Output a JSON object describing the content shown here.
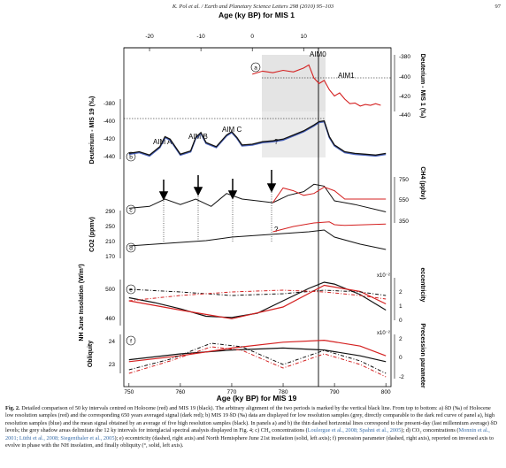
{
  "header": {
    "citation": "K. Pol et al. / Earth and Planetary Science Letters 298 (2010) 95–103",
    "page_number": "97"
  },
  "figure": {
    "top_axis_title": "Age (ky BP) for MIS 1",
    "bottom_axis_title": "Age (ky BP) for MIS 19",
    "top_ticks": [
      "-20",
      "-10",
      "0",
      "10"
    ],
    "bottom_ticks": [
      "750",
      "760",
      "770",
      "780",
      "790",
      "800"
    ],
    "panel_labels": [
      "a",
      "b",
      "c",
      "d",
      "e",
      "f"
    ],
    "panel_a_ticks": [
      "-380",
      "-400",
      "-420",
      "-440"
    ],
    "panel_a_axis": "Deuterium - MIS 1 (‰)",
    "panel_b_ticks": [
      "-380",
      "-400",
      "-420",
      "-440"
    ],
    "panel_b_axis": "Deuterium - MIS 19 (‰)",
    "ch4_ticks": [
      "750",
      "550",
      "350"
    ],
    "ch4_axis": "CH4 (ppbv)",
    "co2_ticks": [
      "290",
      "250",
      "210",
      "170"
    ],
    "co2_axis": "CO2 (ppmv)",
    "insolation_ticks": [
      "500",
      "460"
    ],
    "insolation_axis": "NH June Insolation (W/m²)",
    "ecc_ticks": [
      "2",
      "1",
      "0"
    ],
    "ecc_axis": "eccentricity",
    "ecc_multiplier": "x10⁻²",
    "obliquity_ticks": [
      "24",
      "23"
    ],
    "obliquity_axis": "Obliquity",
    "precession_ticks": [
      "2",
      "0",
      "-2"
    ],
    "precession_axis": "Precession parameter",
    "precession_multiplier": "x10⁻²",
    "annotations": {
      "aim_a": "AIM A",
      "aim_b": "AIM B",
      "aim_c": "AIM C",
      "aim_0": "AIM0",
      "aim_1": "AIM1",
      "question_b": "?",
      "question_co2": "?"
    },
    "colors": {
      "holocene": "#d42020",
      "mis19": "#111111",
      "mis19_high_res": "#2040b0",
      "shading": "#d8d8d8"
    }
  },
  "caption": {
    "label": "Fig. 2.",
    "text": " Detailed comparison of 50 ky intervals centred on Holocene (red) and MIS 19 (black). The arbitrary alignment of the two periods is marked by the vertical black line. From top to bottom: a) δD (‰) of Holocene low resolution samples (red) and the corresponding 650 years averaged signal (dark red); b) MIS 19 δD (‰) data are displayed for low resolution samples (grey, directly comparable to the dark red curve of panel a), high resolution samples (blue) and the mean signal obtained by an average of five high resolution samples (black). In panels a) and b) the thin dashed horizontal lines correspond to the present-day (last millennium average) δD levels; the grey shadow areas delimitate the 12 ky intervals for interglacial spectral analysis displayed in Fig. 4; c) CH₄ concentrations (",
    "ref1": "Loulergue et al., 2008; Spahni et al., 2005",
    "text2": "); d) CO₂ concentrations (",
    "ref2": "Monnin et al., 2001; Lüthi et al., 2008; Siegenthaler et al., 2005",
    "text3": "); e) eccentricity (dashed, right axis) and North Hemisphere June 21st insolation (solid, left axis); f) precession parameter (dashed, right axis), reported on inversed axis to evolve in phase with the NH insolation, and finally obliquity (°, solid, left axis)."
  },
  "chart_data": {
    "type": "line",
    "x_label": "Age (ky BP) for MIS 19",
    "x_range": [
      749,
      801
    ],
    "top_x_label": "Age (ky BP) for MIS 1",
    "top_x_range": [
      -25,
      27
    ],
    "panels": [
      {
        "id": "a",
        "ylabel": "Deuterium - MIS 1 (‰)",
        "ylim": [
          -448,
          -375
        ],
        "series": [
          {
            "values_x": [
              0,
              2,
              4,
              6,
              8,
              10,
              11,
              12,
              13,
              14,
              15,
              16,
              17,
              18,
              19,
              20,
              21,
              22,
              23,
              24,
              25
            ],
            "values_y": [
              -400,
              -396,
              -398,
              -395,
              -397,
              -392,
              -388,
              -405,
              -412,
              -408,
              -420,
              -428,
              -424,
              -432,
              -438,
              -437,
              -441,
              -439,
              -440,
              -438,
              -440
            ]
          }
        ]
      },
      {
        "id": "b",
        "ylabel": "Deuterium - MIS 19 (‰)",
        "ylim": [
          -447,
          -375
        ],
        "series": [
          {
            "values_x": [
              750,
              752,
              754,
              756,
              757,
              758,
              760,
              762,
              763,
              764,
              765,
              767,
              769,
              770,
              771,
              772,
              774,
              776,
              778,
              780,
              782,
              784,
              786,
              787,
              788,
              789,
              790,
              792,
              794,
              796,
              798,
              800
            ],
            "values_y": [
              -440,
              -438,
              -442,
              -432,
              -420,
              -423,
              -441,
              -437,
              -421,
              -415,
              -427,
              -432,
              -418,
              -414,
              -421,
              -430,
              -429,
              -426,
              -425,
              -423,
              -418,
              -413,
              -406,
              -402,
              -401,
              -420,
              -430,
              -438,
              -440,
              -441,
              -442,
              -440
            ]
          }
        ]
      },
      {
        "id": "c",
        "ylabel": "CH4 (ppbv)",
        "ylim": [
          300,
          800
        ],
        "series": [
          {
            "values_x": [
              750,
              754,
              757,
              760,
              763,
              766,
              769,
              772,
              775,
              778,
              781,
              784,
              786,
              788,
              790,
              794,
              800
            ],
            "values_y": [
              460,
              480,
              560,
              500,
              560,
              480,
              620,
              560,
              540,
              520,
              600,
              640,
              720,
              700,
              540,
              500,
              420
            ]
          },
          {
            "values_x": [
              778,
              780,
              782,
              784,
              786,
              788,
              790,
              792,
              796,
              800
            ],
            "values_y": [
              520,
              680,
              650,
              600,
              620,
              690,
              650,
              560,
              560,
              560
            ]
          }
        ]
      },
      {
        "id": "d",
        "ylabel": "CO2 (ppmv)",
        "ylim": [
          165,
          300
        ],
        "series": [
          {
            "values_x": [
              750,
              755,
              760,
              765,
              770,
              775,
              780,
              785,
              788,
              790,
              795,
              800
            ],
            "values_y": [
              200,
              205,
              210,
              215,
              225,
              230,
              235,
              240,
              245,
              225,
              205,
              190
            ]
          },
          {
            "values_x": [
              778,
              782,
              786,
              789,
              790,
              792,
              796,
              800
            ],
            "values_y": [
              240,
              255,
              265,
              268,
              260,
              258,
              260,
              262
            ]
          }
        ]
      },
      {
        "id": "e",
        "ylabel": "NH June Insolation (W/m²)",
        "ylim": [
          455,
          535
        ],
        "series": [
          {
            "values_x": [
              750,
              755,
              760,
              765,
              770,
              775,
              780,
              785,
              788,
              790,
              795,
              800
            ],
            "values_y": [
              500,
              492,
              482,
              470,
              468,
              475,
              495,
              515,
              525,
              522,
              505,
              480
            ]
          },
          {
            "values_x": [
              750,
              760,
              770,
              780,
              788,
              795,
              800
            ],
            "values_y": [
              495,
              480,
              466,
              485,
              520,
              510,
              490
            ]
          }
        ]
      },
      {
        "id": "f",
        "ylabel": "Obliquity",
        "ylim": [
          22.6,
          24.6
        ],
        "series": [
          {
            "values_x": [
              750,
              760,
              770,
              780,
              788,
              795,
              800
            ],
            "values_y": [
              23.3,
              23.6,
              23.8,
              23.9,
              23.8,
              23.5,
              23.2
            ]
          },
          {
            "values_x": [
              750,
              760,
              770,
              780,
              788,
              795,
              800
            ],
            "values_y": [
              23.2,
              23.5,
              23.9,
              24.2,
              24.3,
              24.0,
              23.5
            ]
          }
        ]
      }
    ]
  }
}
